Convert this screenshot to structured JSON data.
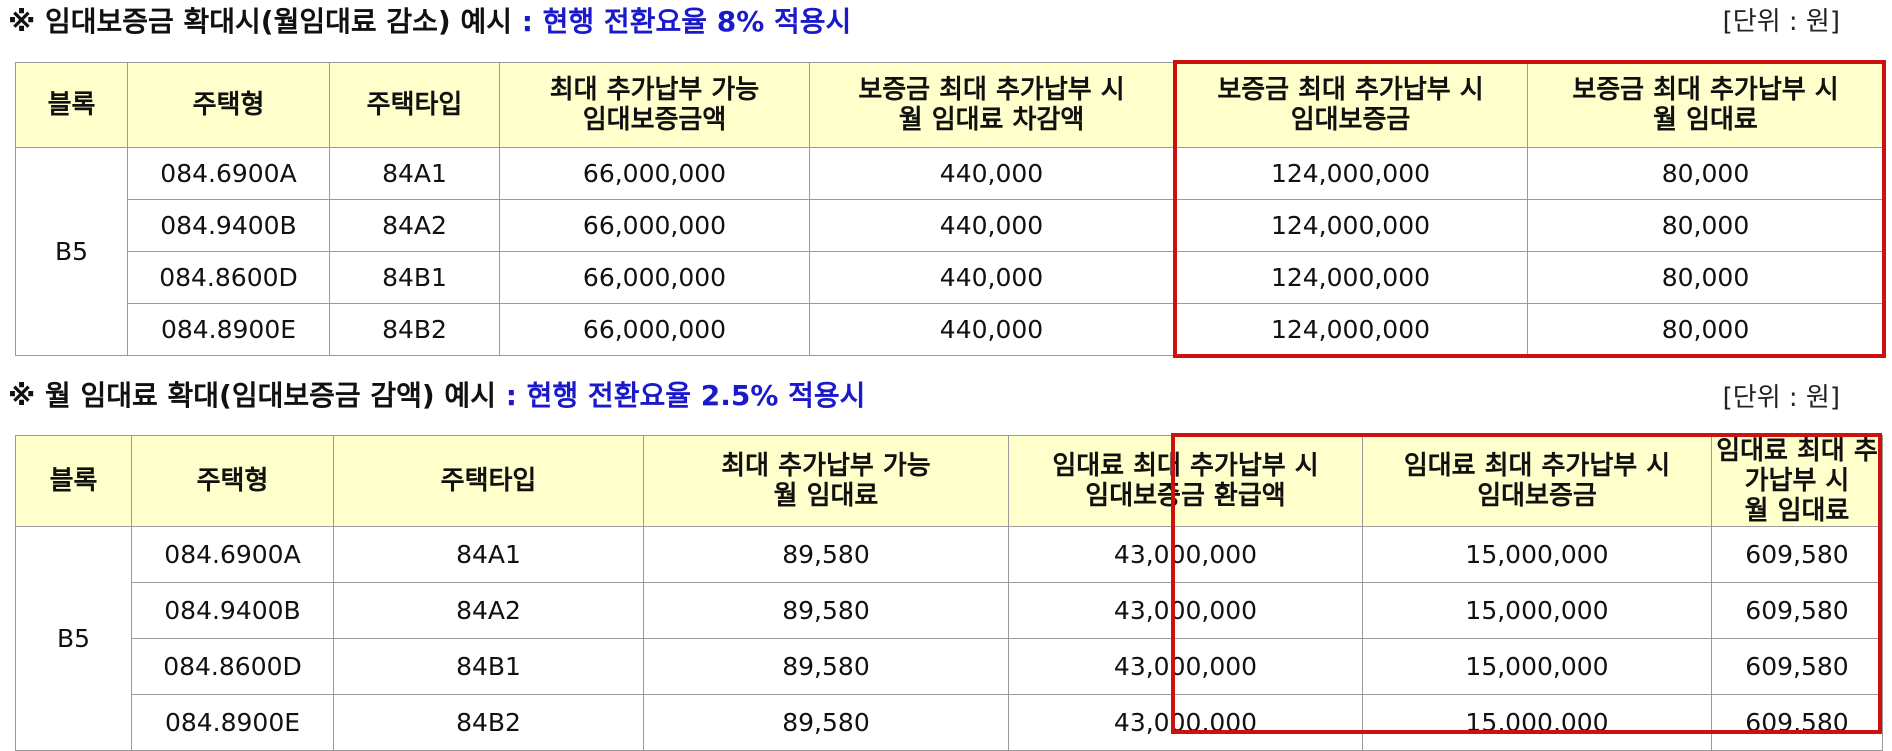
{
  "sections": [
    {
      "title_prefix": "※ 임대보증금 확대시(월임대료 감소) 예시 ",
      "title_highlight": ": 현행 전환요율 8% 적용시",
      "unit": "[단위 : 원]",
      "headers": [
        "블록",
        "주택형",
        "주택타입",
        "최대 추가납부 가능\n임대보증금액",
        "보증금 최대 추가납부 시\n월 임대료 차감액",
        "보증금 최대 추가납부 시\n임대보증금",
        "보증금 최대 추가납부 시\n월 임대료"
      ],
      "block": "B5",
      "rows": [
        [
          "084.6900A",
          "84A1",
          "66,000,000",
          "440,000",
          "124,000,000",
          "80,000"
        ],
        [
          "084.9400B",
          "84A2",
          "66,000,000",
          "440,000",
          "124,000,000",
          "80,000"
        ],
        [
          "084.8600D",
          "84B1",
          "66,000,000",
          "440,000",
          "124,000,000",
          "80,000"
        ],
        [
          "084.8900E",
          "84B2",
          "66,000,000",
          "440,000",
          "124,000,000",
          "80,000"
        ]
      ]
    },
    {
      "title_prefix": "※ 월 임대료 확대(임대보증금 감액) 예시 ",
      "title_highlight": ": 현행 전환요율 2.5% 적용시",
      "unit": "[단위 : 원]",
      "headers": [
        "블록",
        "주택형",
        "주택타입",
        "최대 추가납부 가능\n월 임대료",
        "임대료 최대 추가납부 시\n임대보증금 환급액",
        "임대료 최대 추가납부 시\n임대보증금",
        "임대료 최대 추가납부 시\n월 임대료"
      ],
      "block": "B5",
      "rows": [
        [
          "084.6900A",
          "84A1",
          "89,580",
          "43,000,000",
          "15,000,000",
          "609,580"
        ],
        [
          "084.9400B",
          "84A2",
          "89,580",
          "43,000,000",
          "15,000,000",
          "609,580"
        ],
        [
          "084.8600D",
          "84B1",
          "89,580",
          "43,000,000",
          "15,000,000",
          "609,580"
        ],
        [
          "084.8900E",
          "84B2",
          "89,580",
          "43,000,000",
          "15,000,000",
          "609,580"
        ]
      ]
    }
  ],
  "colors": {
    "header_bg": "#ffffcc",
    "highlight_text": "#1a1acc",
    "emphasis_border": "#cc1111",
    "grid": "#9a9a9a"
  }
}
